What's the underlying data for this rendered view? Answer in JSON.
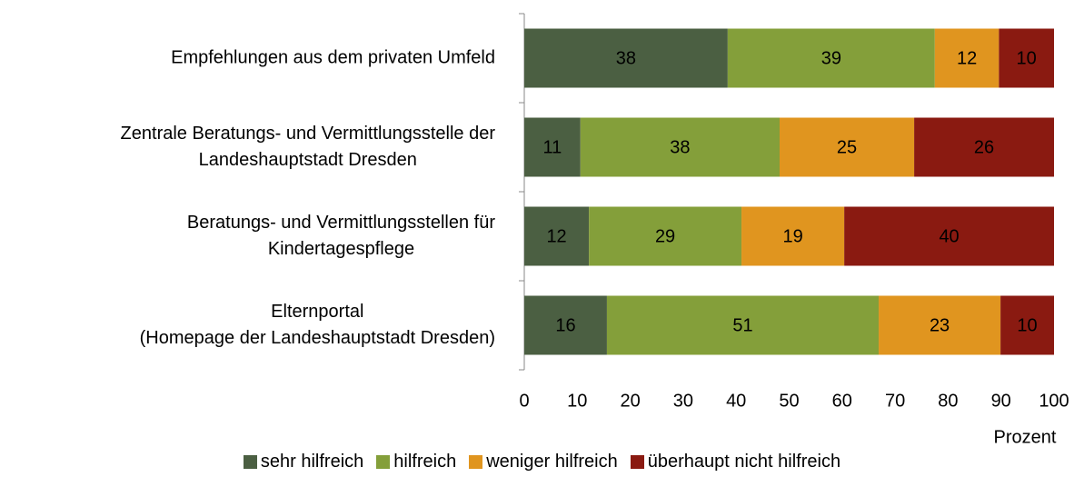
{
  "chart_data": {
    "type": "stacked-bar-horizontal",
    "categories": [
      "Empfehlungen aus dem privaten Umfeld",
      "Zentrale Beratungs- und Vermittlungsstelle der\nLandeshauptstadt Dresden",
      "Beratungs- und Vermittlungsstellen für\nKindertagespflege",
      "Elternportal\n(Homepage der Landeshauptstadt Dresden)"
    ],
    "series": [
      {
        "name": "sehr hilfreich",
        "color": "#4b5f42",
        "values": [
          38.4,
          10.6,
          12.2,
          15.6
        ],
        "value_labels": [
          "38",
          "11",
          "12",
          "16"
        ]
      },
      {
        "name": "hilfreich",
        "color": "#849f3a",
        "values": [
          39.1,
          37.6,
          28.8,
          51.3
        ],
        "value_labels": [
          "39",
          "38",
          "29",
          "51"
        ]
      },
      {
        "name": "weniger hilfreich",
        "color": "#e0951f",
        "values": [
          12.1,
          25.4,
          19.4,
          23.0
        ],
        "value_labels": [
          "12",
          "25",
          "19",
          "23"
        ]
      },
      {
        "name": "überhaupt nicht hilfreich",
        "color": "#8a1a11",
        "values": [
          10.4,
          26.4,
          39.6,
          10.1
        ],
        "value_labels": [
          "10",
          "26",
          "40",
          "10"
        ]
      }
    ],
    "xlim": [
      0,
      100
    ],
    "xticks": [
      0,
      10,
      20,
      30,
      40,
      50,
      60,
      70,
      80,
      90,
      100
    ],
    "xlabel": "Prozent",
    "legend": "bottom"
  }
}
